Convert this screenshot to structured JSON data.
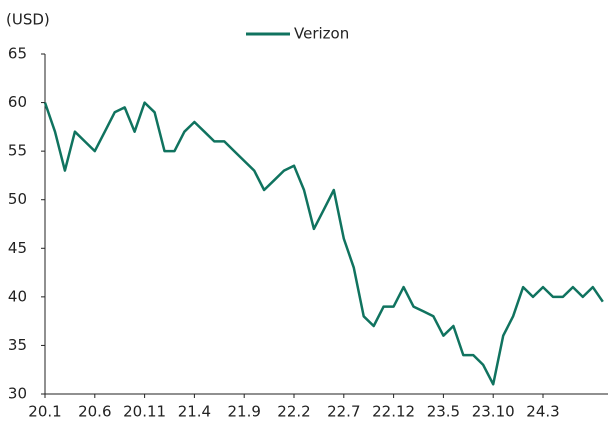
{
  "chart_data": {
    "type": "line",
    "y_unit_label": "(USD)",
    "categories": [
      "20.1",
      null,
      null,
      null,
      null,
      "20.6",
      null,
      null,
      null,
      null,
      "20.11",
      null,
      null,
      null,
      null,
      "21.4",
      null,
      null,
      null,
      null,
      "21.9",
      null,
      null,
      null,
      null,
      "22.2",
      null,
      null,
      null,
      null,
      "22.7",
      null,
      null,
      null,
      null,
      "22.12",
      null,
      null,
      null,
      null,
      "23.5",
      null,
      null,
      null,
      null,
      "23.10",
      null,
      null,
      null,
      null,
      "24.3",
      null,
      null,
      null,
      null,
      null,
      null
    ],
    "series": [
      {
        "name": "Verizon",
        "color": "#10735f",
        "values": [
          60,
          57,
          53,
          57,
          56,
          55,
          57,
          59,
          59.5,
          57,
          60,
          59,
          55,
          55,
          57,
          58,
          57,
          56,
          56,
          55,
          54,
          53,
          51,
          52,
          53,
          53.5,
          51,
          47,
          49,
          51,
          46,
          43,
          38,
          37,
          39,
          39,
          41,
          39,
          38.5,
          38,
          36,
          37,
          34,
          34,
          33,
          31,
          36,
          38,
          41,
          40,
          41,
          40,
          40,
          41,
          40,
          41,
          39.5
        ]
      }
    ],
    "ylim": [
      30,
      65
    ],
    "yticks": [
      30,
      35,
      40,
      45,
      50,
      55,
      60,
      65
    ]
  }
}
